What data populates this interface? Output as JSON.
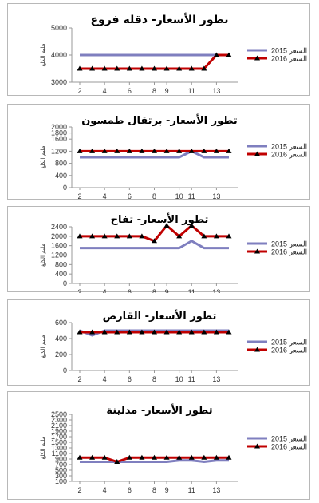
{
  "chart_data": [
    {
      "type": "line",
      "title": "تطور الأسعار- دقلة فروع",
      "ylabel": "مليم الكلغ",
      "ylim": [
        3000,
        5000
      ],
      "yticks": [
        3000,
        4000,
        5000
      ],
      "x": [
        2,
        3,
        4,
        5,
        6,
        7,
        8,
        9,
        10,
        11,
        12,
        13,
        14
      ],
      "xticks": [
        2,
        4,
        6,
        8,
        9,
        11,
        13
      ],
      "series": [
        {
          "name": "السعر 2015",
          "color": "#7f7fbf",
          "marker": false,
          "values": [
            4000,
            4000,
            4000,
            4000,
            4000,
            4000,
            4000,
            4000,
            4000,
            4000,
            4000,
            4000,
            4000
          ]
        },
        {
          "name": "السعر 2016",
          "color": "#c00000",
          "marker": true,
          "values": [
            3500,
            3500,
            3500,
            3500,
            3500,
            3500,
            3500,
            3500,
            3500,
            3500,
            3500,
            4000,
            4000
          ]
        }
      ]
    },
    {
      "type": "line",
      "title": "تطور الأسعار- برتقال طمسون",
      "ylabel": "مليم الكلغ",
      "ylim": [
        0,
        2000
      ],
      "yticks": [
        0,
        400,
        800,
        1200,
        1600,
        2000
      ],
      "extraTicks": [
        1800
      ],
      "x": [
        2,
        3,
        4,
        5,
        6,
        7,
        8,
        9,
        10,
        11,
        12,
        13,
        14
      ],
      "xticks": [
        2,
        4,
        6,
        8,
        10,
        11,
        13
      ],
      "series": [
        {
          "name": "السعر 2015",
          "color": "#7f7fbf",
          "marker": false,
          "values": [
            1000,
            1000,
            1000,
            1000,
            1000,
            1000,
            1000,
            1000,
            1000,
            1200,
            1000,
            1000,
            1000
          ]
        },
        {
          "name": "السعر 2016",
          "color": "#c00000",
          "marker": true,
          "values": [
            1200,
            1200,
            1200,
            1200,
            1200,
            1200,
            1200,
            1200,
            1200,
            1200,
            1200,
            1200,
            1200
          ]
        }
      ]
    },
    {
      "type": "line",
      "title": "تطور الأسعار- تفاح",
      "ylabel": "مليم الكلغ",
      "ylim": [
        0,
        2400
      ],
      "yticks": [
        0,
        400,
        800,
        1200,
        1600,
        2000,
        2400
      ],
      "x": [
        2,
        3,
        4,
        5,
        6,
        7,
        8,
        9,
        10,
        11,
        12,
        13,
        14
      ],
      "xticks": [
        2,
        4,
        6,
        8,
        9,
        11,
        13
      ],
      "series": [
        {
          "name": "السعر 2015",
          "color": "#7f7fbf",
          "marker": false,
          "values": [
            1500,
            1500,
            1500,
            1500,
            1500,
            1500,
            1500,
            1500,
            1500,
            1800,
            1500,
            1500,
            1500
          ]
        },
        {
          "name": "السعر 2016",
          "color": "#c00000",
          "marker": true,
          "values": [
            2000,
            2000,
            2000,
            2000,
            2000,
            2000,
            1800,
            2450,
            2000,
            2450,
            2000,
            2000,
            2000
          ]
        }
      ]
    },
    {
      "type": "line",
      "title": "تطور الأسعار- القارص",
      "ylabel": "مليم الكلغ",
      "ylim": [
        0,
        600
      ],
      "yticks": [
        0,
        200,
        400,
        600
      ],
      "x": [
        2,
        3,
        4,
        5,
        6,
        7,
        8,
        9,
        10,
        11,
        12,
        13,
        14
      ],
      "xticks": [
        2,
        4,
        6,
        8,
        10,
        11,
        13
      ],
      "series": [
        {
          "name": "السعر 2015",
          "color": "#7f7fbf",
          "marker": false,
          "values": [
            500,
            440,
            500,
            500,
            500,
            500,
            500,
            500,
            500,
            500,
            500,
            500,
            500
          ]
        },
        {
          "name": "السعر 2016",
          "color": "#c00000",
          "marker": true,
          "values": [
            480,
            480,
            480,
            480,
            480,
            480,
            480,
            480,
            480,
            480,
            480,
            480,
            480
          ]
        }
      ]
    },
    {
      "type": "line",
      "title": "تطور الأسعار- مدلينة",
      "ylabel": "مليم الكلغ",
      "ylim": [
        100,
        2500
      ],
      "yticks": [
        100,
        300,
        500,
        700,
        900,
        1100,
        1300,
        1500,
        1700,
        1900,
        2100,
        2300,
        2500
      ],
      "x": [
        2,
        3,
        4,
        5,
        6,
        7,
        8,
        9,
        10,
        11,
        12,
        13,
        14
      ],
      "xticks": [
        2,
        4,
        6,
        8,
        9,
        11,
        13
      ],
      "series": [
        {
          "name": "السعر 2015",
          "color": "#7f7fbf",
          "marker": false,
          "values": [
            800,
            800,
            800,
            800,
            800,
            800,
            800,
            800,
            850,
            850,
            800,
            850,
            850
          ]
        },
        {
          "name": "السعر 2016",
          "color": "#c00000",
          "marker": true,
          "values": [
            950,
            950,
            950,
            800,
            950,
            950,
            950,
            950,
            950,
            950,
            950,
            950,
            950
          ]
        }
      ]
    }
  ]
}
